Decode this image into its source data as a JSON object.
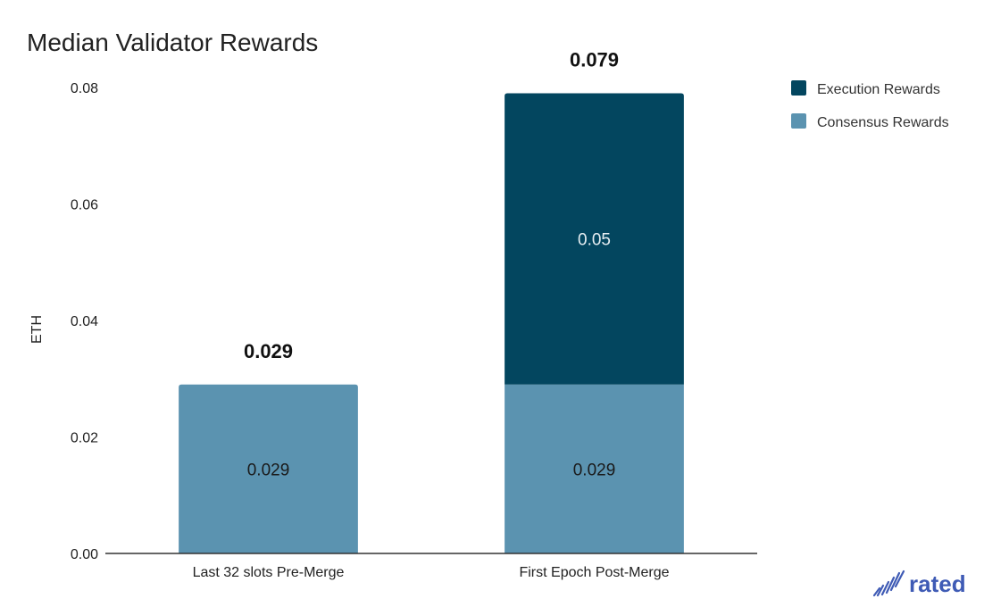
{
  "chart_data": {
    "type": "bar",
    "stacked": true,
    "title": "Median Validator Rewards",
    "xlabel": "",
    "ylabel": "ETH",
    "ylim": [
      0,
      0.08
    ],
    "yticks": [
      "0.00",
      "0.02",
      "0.04",
      "0.06",
      "0.08"
    ],
    "categories": [
      "Last 32 slots Pre-Merge",
      "First Epoch Post-Merge"
    ],
    "series": [
      {
        "name": "Consensus Rewards",
        "color": "#5b93b0",
        "values": [
          0.029,
          0.029
        ],
        "labels": [
          "0.029",
          "0.029"
        ],
        "label_color": "#1a1a1a"
      },
      {
        "name": "Execution Rewards",
        "color": "#03465f",
        "values": [
          0,
          0.05
        ],
        "labels": [
          "",
          "0.05"
        ],
        "label_color": "#e6eef2"
      }
    ],
    "totals": [
      "0.029",
      "0.079"
    ],
    "legend_position": "right",
    "legend_order": [
      "Execution Rewards",
      "Consensus Rewards"
    ],
    "grid": false
  },
  "brand": {
    "logo_text": "rated",
    "logo_color": "#3f5bb5"
  }
}
